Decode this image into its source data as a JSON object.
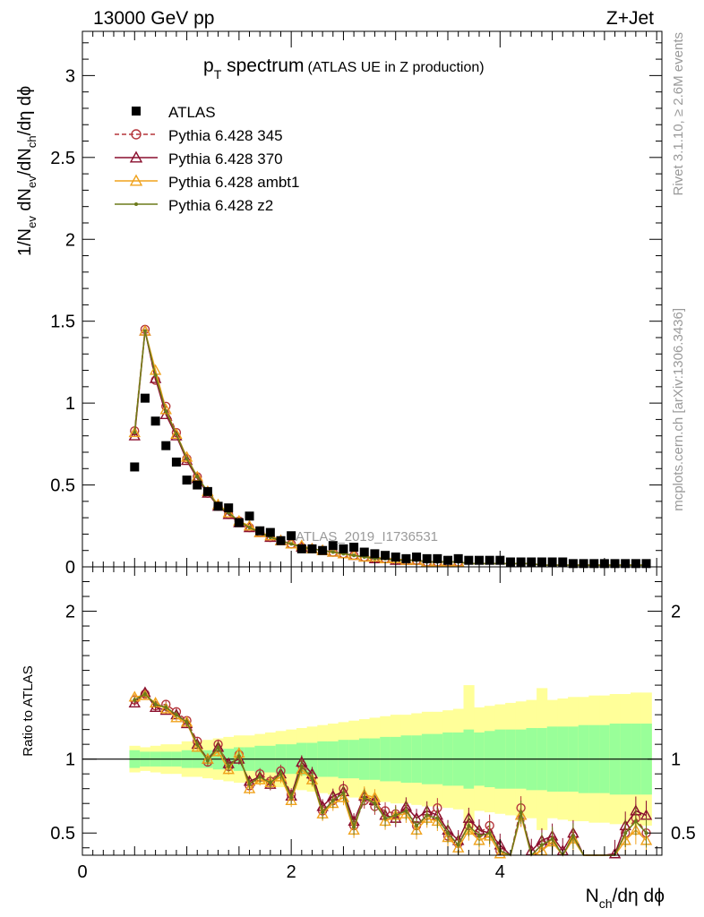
{
  "header": {
    "left": "13000 GeV pp",
    "right": "Z+Jet"
  },
  "side_texts": {
    "rivet": "Rivet 3.1.10, ≥ 2.6M events",
    "mcplots": "mcplots.cern.ch [arXiv:1306.3436]"
  },
  "chart_data": {
    "type": "scatter",
    "title": {
      "main": "p",
      "sub": "T",
      "rest": " spectrum",
      "paren": "(ATLAS UE in Z production)"
    },
    "watermark": "ATLAS_2019_I1736531",
    "xlabel": {
      "n": "N",
      "sub": "ch",
      "rest": "/dη dϕ"
    },
    "ylabel_parts": [
      "1/N",
      "ev",
      " dN",
      "ev",
      "/dN",
      "ch",
      "/dη dϕ"
    ],
    "ratio_ylabel": "Ratio to ATLAS",
    "xlim": [
      0,
      5.55
    ],
    "ylim": [
      0,
      3.27
    ],
    "ratio_ylim": [
      0.35,
      2.3
    ],
    "x_ticks": [
      "0",
      "2",
      "4"
    ],
    "y_ticks": [
      "0",
      "0.5",
      "1",
      "1.5",
      "2",
      "2.5",
      "3"
    ],
    "ratio_ticks": [
      "0.5",
      "1",
      "2"
    ],
    "x": [
      0.5,
      0.6,
      0.7,
      0.8,
      0.9,
      1.0,
      1.1,
      1.2,
      1.3,
      1.4,
      1.5,
      1.6,
      1.7,
      1.8,
      1.9,
      2.0,
      2.1,
      2.2,
      2.3,
      2.4,
      2.5,
      2.6,
      2.7,
      2.8,
      2.9,
      3.0,
      3.1,
      3.2,
      3.3,
      3.4,
      3.5,
      3.6,
      3.7,
      3.8,
      3.9,
      4.0,
      4.1,
      4.2,
      4.3,
      4.4,
      4.5,
      4.6,
      4.7,
      4.8,
      4.9,
      5.0,
      5.1,
      5.2,
      5.3,
      5.4
    ],
    "atlas": [
      0.61,
      1.03,
      0.89,
      0.74,
      0.64,
      0.53,
      0.5,
      0.46,
      0.37,
      0.36,
      0.27,
      0.31,
      0.22,
      0.21,
      0.16,
      0.19,
      0.11,
      0.11,
      0.1,
      0.13,
      0.11,
      0.12,
      0.09,
      0.08,
      0.07,
      0.06,
      0.05,
      0.06,
      0.05,
      0.05,
      0.04,
      0.05,
      0.04,
      0.04,
      0.04,
      0.04,
      0.03,
      0.03,
      0.03,
      0.03,
      0.03,
      0.03,
      0.02,
      0.02,
      0.02,
      0.02,
      0.02,
      0.02,
      0.02,
      0.02
    ],
    "series": [
      {
        "name": "Pythia 6.428 345",
        "color": "#b5363c",
        "marker": "circle",
        "dash": true,
        "values": [
          0.83,
          1.45,
          1.14,
          0.98,
          0.82,
          0.66,
          0.55,
          0.45,
          0.37,
          0.32,
          0.28,
          0.24,
          0.21,
          0.18,
          0.16,
          0.14,
          0.12,
          0.11,
          0.1,
          0.09,
          0.08,
          0.07,
          0.06,
          0.05,
          0.05,
          0.04,
          0.04,
          0.04,
          0.03,
          0.03,
          0.03,
          0.03,
          0.02,
          0.02,
          0.02,
          0.02,
          0.02,
          0.02,
          0.02,
          0.01,
          0.01,
          0.01,
          0.01,
          0.01,
          0.01,
          0.01,
          0.01,
          0.01,
          0.01,
          0.01
        ],
        "ratio": [
          1.4,
          1.44,
          1.36,
          1.37,
          1.32,
          1.26,
          1.12,
          0.98,
          1.1,
          0.95,
          1.03,
          0.82,
          0.9,
          0.85,
          0.92,
          0.76,
          0.96,
          0.88,
          0.65,
          0.72,
          0.8,
          0.55,
          0.72,
          0.68,
          0.65,
          0.63,
          0.66,
          0.55,
          0.62,
          0.67,
          0.48,
          0.43,
          0.55,
          0.5,
          0.55,
          0.38,
          0.3,
          0.67,
          0.35,
          0.42,
          0.45,
          0.35,
          0.48,
          0.3,
          0.25,
          0.3,
          0.34,
          0.5,
          0.6,
          0.5
        ]
      },
      {
        "name": "Pythia 6.428 370",
        "color": "#8a0f2e",
        "marker": "triangle",
        "dash": false,
        "values": [
          0.8,
          1.44,
          1.15,
          0.93,
          0.8,
          0.65,
          0.54,
          0.45,
          0.37,
          0.32,
          0.27,
          0.24,
          0.21,
          0.18,
          0.16,
          0.14,
          0.12,
          0.11,
          0.1,
          0.09,
          0.08,
          0.07,
          0.06,
          0.05,
          0.05,
          0.04,
          0.04,
          0.04,
          0.03,
          0.03,
          0.03,
          0.03,
          0.02,
          0.02,
          0.02,
          0.02,
          0.02,
          0.02,
          0.02,
          0.01,
          0.01,
          0.01,
          0.01,
          0.01,
          0.01,
          0.01,
          0.01,
          0.01,
          0.01,
          0.01
        ],
        "ratio": [
          1.38,
          1.45,
          1.35,
          1.33,
          1.3,
          1.24,
          1.1,
          1.0,
          1.08,
          0.97,
          1.0,
          0.85,
          0.88,
          0.83,
          0.9,
          0.75,
          0.98,
          0.9,
          0.68,
          0.75,
          0.78,
          0.58,
          0.75,
          0.72,
          0.62,
          0.6,
          0.68,
          0.6,
          0.65,
          0.62,
          0.52,
          0.45,
          0.6,
          0.52,
          0.5,
          0.42,
          0.32,
          0.62,
          0.38,
          0.45,
          0.48,
          0.38,
          0.5,
          0.35,
          0.28,
          0.33,
          0.36,
          0.55,
          0.65,
          0.62
        ]
      },
      {
        "name": "Pythia 6.428 ambt1",
        "color": "#f0a21c",
        "marker": "triangle",
        "dash": false,
        "values": [
          0.82,
          1.44,
          1.2,
          0.96,
          0.81,
          0.67,
          0.55,
          0.46,
          0.38,
          0.33,
          0.28,
          0.25,
          0.21,
          0.19,
          0.16,
          0.14,
          0.13,
          0.11,
          0.1,
          0.09,
          0.08,
          0.07,
          0.06,
          0.06,
          0.05,
          0.05,
          0.04,
          0.04,
          0.03,
          0.03,
          0.03,
          0.03,
          0.02,
          0.02,
          0.02,
          0.02,
          0.02,
          0.02,
          0.02,
          0.01,
          0.01,
          0.01,
          0.01,
          0.01,
          0.01,
          0.01,
          0.01,
          0.01,
          0.01,
          0.01
        ],
        "ratio": [
          1.42,
          1.43,
          1.38,
          1.34,
          1.28,
          1.25,
          1.08,
          1.0,
          1.05,
          0.93,
          1.04,
          0.8,
          0.86,
          0.84,
          0.88,
          0.72,
          0.93,
          0.86,
          0.63,
          0.7,
          0.74,
          0.52,
          0.76,
          0.74,
          0.58,
          0.62,
          0.63,
          0.52,
          0.6,
          0.58,
          0.47,
          0.4,
          0.52,
          0.45,
          0.48,
          0.36,
          0.28,
          0.62,
          0.33,
          0.38,
          0.44,
          0.33,
          0.46,
          0.3,
          0.26,
          0.3,
          0.32,
          0.45,
          0.52,
          0.45
        ]
      },
      {
        "name": "Pythia 6.428 z2",
        "color": "#6b7a1a",
        "marker": "dot",
        "dash": false,
        "values": [
          0.82,
          1.44,
          1.17,
          0.95,
          0.81,
          0.66,
          0.55,
          0.46,
          0.37,
          0.33,
          0.28,
          0.24,
          0.21,
          0.18,
          0.16,
          0.14,
          0.12,
          0.11,
          0.1,
          0.09,
          0.08,
          0.07,
          0.06,
          0.05,
          0.05,
          0.04,
          0.04,
          0.04,
          0.03,
          0.03,
          0.03,
          0.03,
          0.02,
          0.02,
          0.02,
          0.02,
          0.02,
          0.02,
          0.02,
          0.01,
          0.01,
          0.01,
          0.01,
          0.01,
          0.01,
          0.01,
          0.01,
          0.01,
          0.01,
          0.01
        ],
        "ratio": [
          1.4,
          1.44,
          1.37,
          1.35,
          1.3,
          1.25,
          1.1,
          0.99,
          1.08,
          0.95,
          1.02,
          0.83,
          0.88,
          0.84,
          0.9,
          0.74,
          0.95,
          0.87,
          0.64,
          0.72,
          0.77,
          0.54,
          0.74,
          0.7,
          0.6,
          0.62,
          0.65,
          0.55,
          0.62,
          0.6,
          0.5,
          0.42,
          0.55,
          0.48,
          0.5,
          0.38,
          0.3,
          0.64,
          0.35,
          0.42,
          0.46,
          0.35,
          0.48,
          0.32,
          0.27,
          0.32,
          0.34,
          0.5,
          0.58,
          0.5
        ]
      }
    ],
    "band_green": [
      0.06,
      0.05,
      0.05,
      0.05,
      0.05,
      0.06,
      0.06,
      0.06,
      0.07,
      0.07,
      0.08,
      0.08,
      0.09,
      0.09,
      0.1,
      0.1,
      0.11,
      0.11,
      0.12,
      0.12,
      0.13,
      0.13,
      0.14,
      0.14,
      0.15,
      0.15,
      0.16,
      0.16,
      0.17,
      0.17,
      0.18,
      0.18,
      0.2,
      0.18,
      0.19,
      0.2,
      0.2,
      0.2,
      0.21,
      0.21,
      0.22,
      0.22,
      0.22,
      0.23,
      0.23,
      0.23,
      0.24,
      0.24,
      0.24,
      0.24
    ],
    "band_yellow": [
      0.09,
      0.08,
      0.09,
      0.1,
      0.1,
      0.12,
      0.12,
      0.13,
      0.14,
      0.15,
      0.16,
      0.16,
      0.17,
      0.18,
      0.19,
      0.2,
      0.21,
      0.22,
      0.23,
      0.24,
      0.25,
      0.26,
      0.27,
      0.28,
      0.29,
      0.3,
      0.3,
      0.31,
      0.32,
      0.32,
      0.33,
      0.34,
      0.5,
      0.35,
      0.36,
      0.37,
      0.38,
      0.39,
      0.4,
      0.48,
      0.4,
      0.41,
      0.42,
      0.42,
      0.43,
      0.43,
      0.44,
      0.44,
      0.45,
      0.45
    ]
  }
}
